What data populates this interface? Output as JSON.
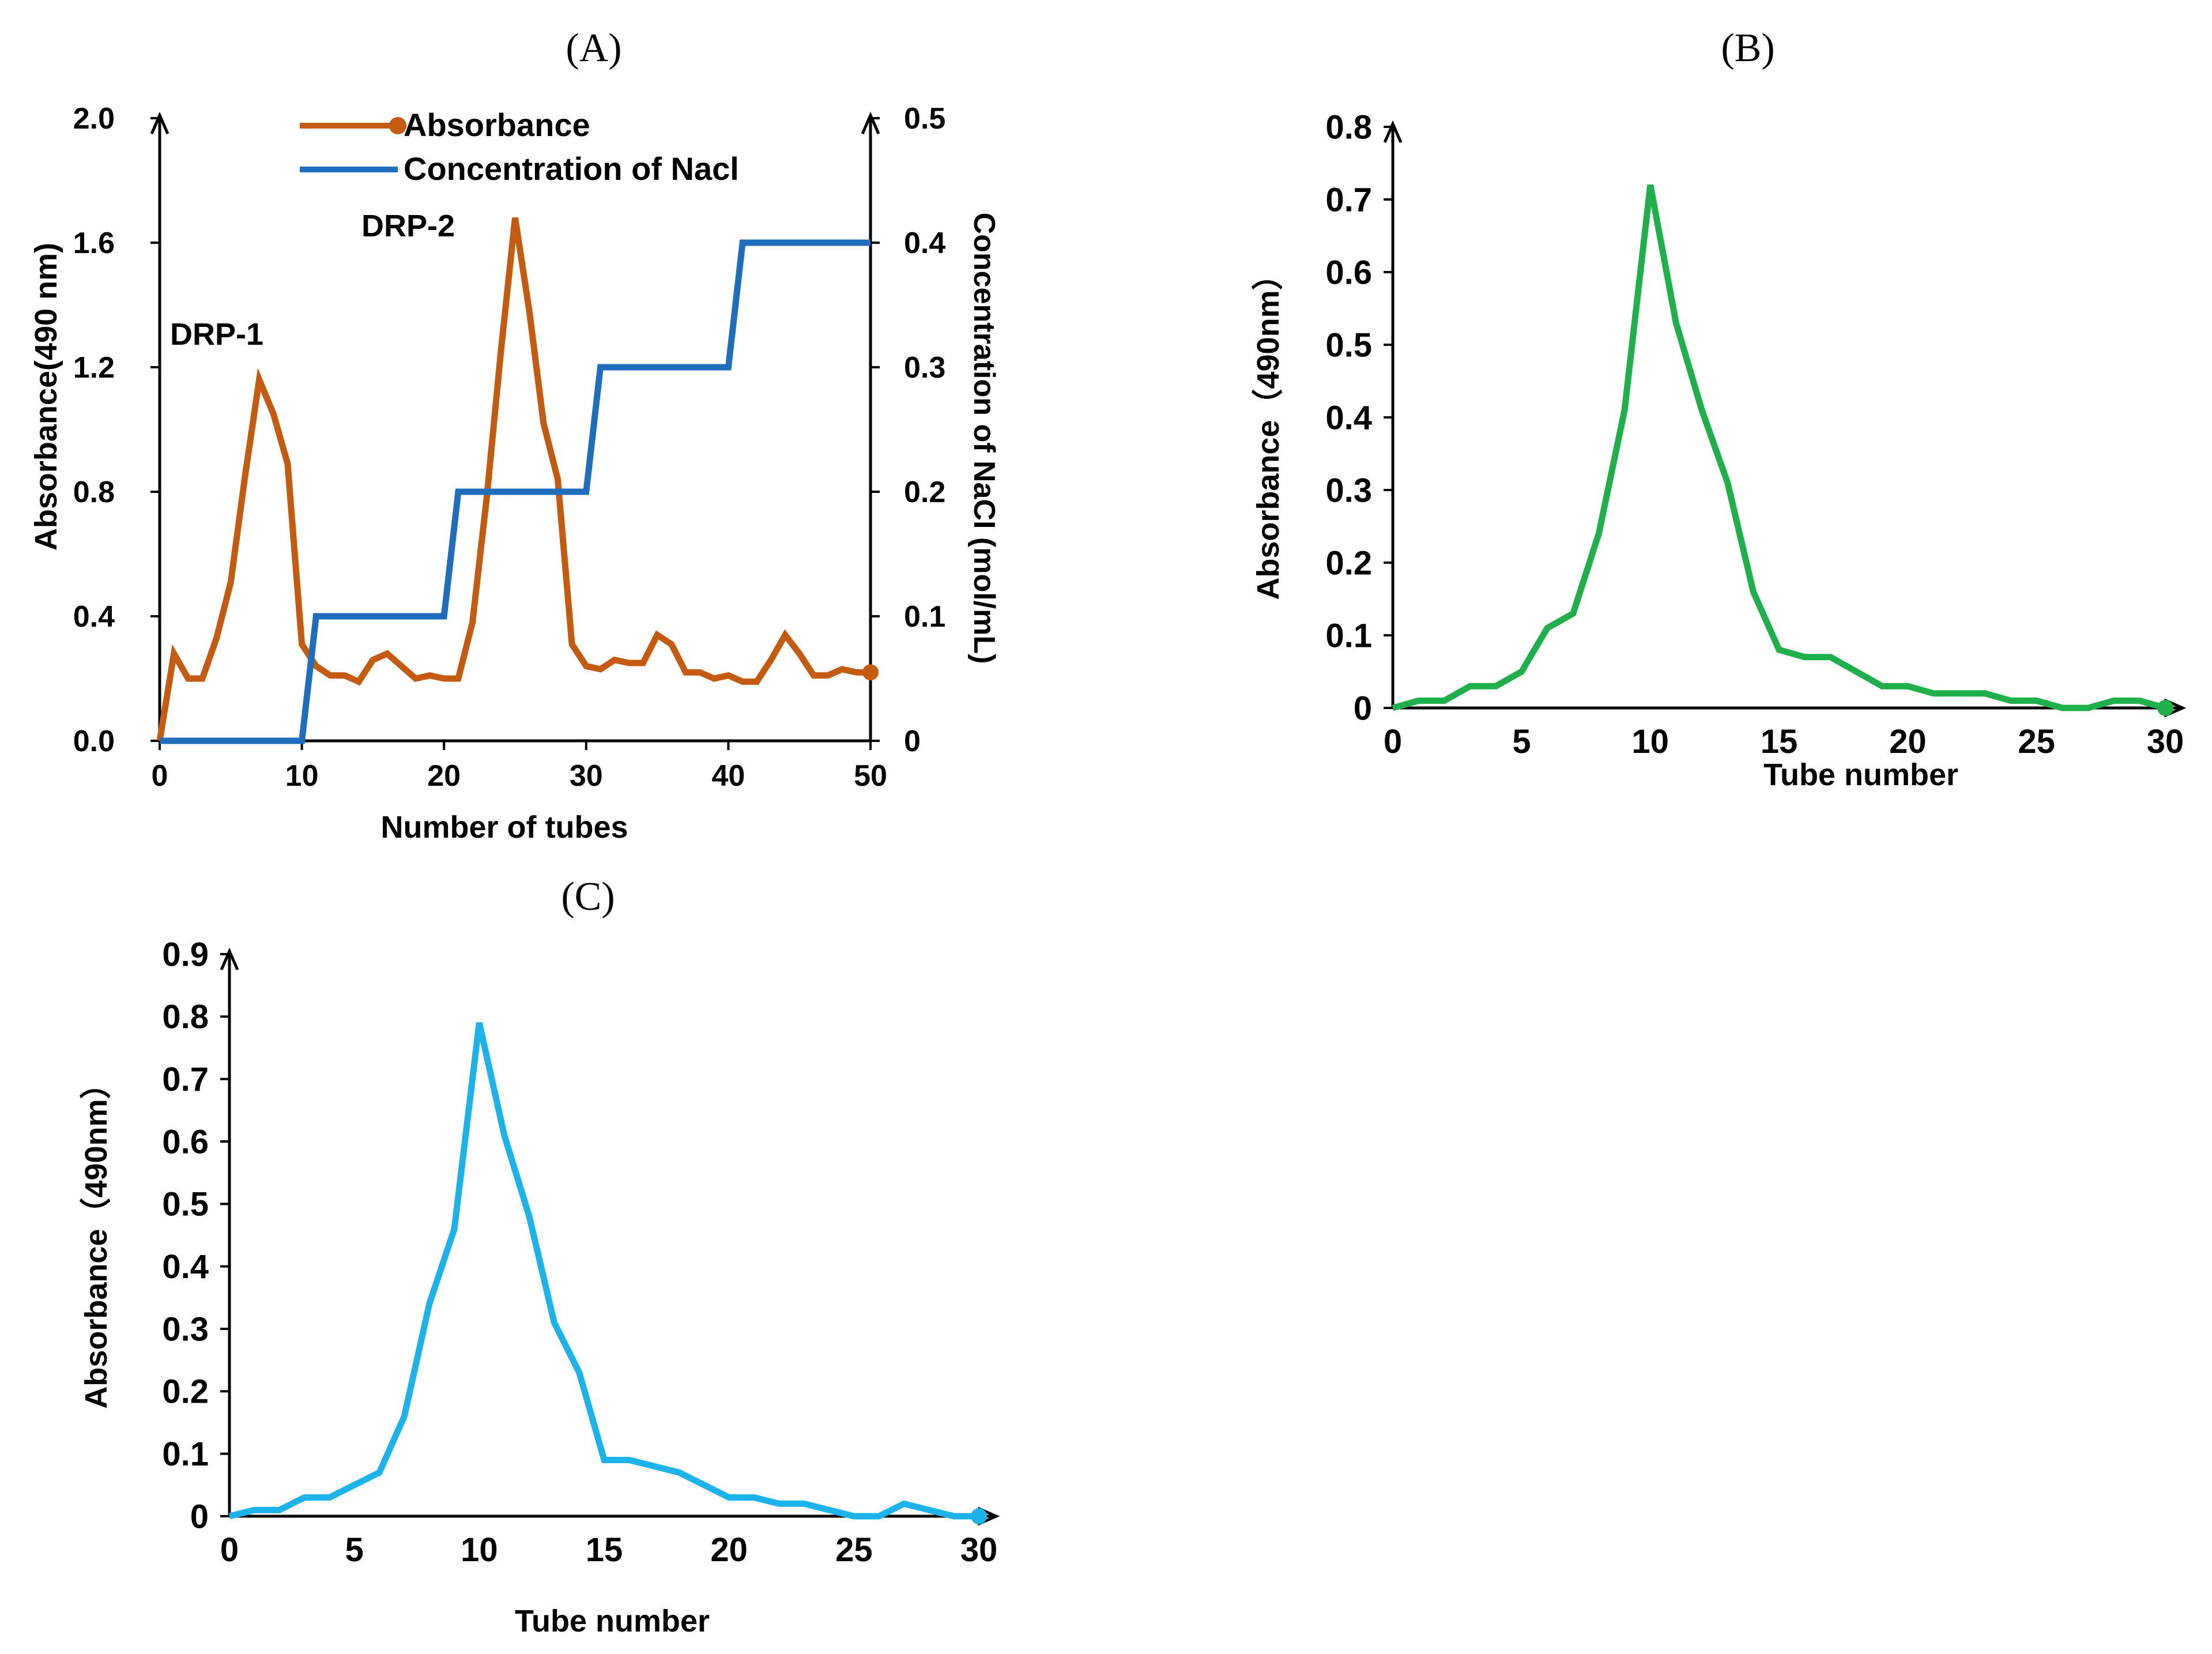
{
  "chart_data": [
    {
      "id": "A",
      "type": "line",
      "panel_label": "(A)",
      "xlabel": "Number of tubes",
      "ylabel_left": "Absorbance(490 nm)",
      "ylabel_right": "Concentration of NaCI (mol/mL)",
      "x_ticks": [
        "0",
        "10",
        "20",
        "30",
        "40",
        "50"
      ],
      "y_left_ticks": [
        "0.0",
        "0.4",
        "0.8",
        "1.2",
        "1.6",
        "2.0"
      ],
      "y_right_ticks": [
        "0",
        "0.1",
        "0.2",
        "0.3",
        "0.4",
        "0.5"
      ],
      "xlim": [
        0,
        50
      ],
      "ylim_left": [
        0,
        2.0
      ],
      "ylim_right": [
        0,
        0.5
      ],
      "legend_position": "top-center",
      "grid": false,
      "annotations": [
        {
          "text": "DRP-1",
          "x": 7,
          "y": 1.3
        },
        {
          "text": "DRP-2",
          "x": 23,
          "y": 1.7
        }
      ],
      "series": [
        {
          "name": "Absorbance",
          "axis": "left",
          "color": "#C55A11",
          "x": [
            0,
            1,
            2,
            3,
            4,
            5,
            6,
            7,
            8,
            9,
            10,
            11,
            12,
            13,
            14,
            15,
            16,
            17,
            18,
            19,
            20,
            21,
            22,
            23,
            24,
            25,
            26,
            27,
            28,
            29,
            30,
            31,
            32,
            33,
            34,
            35,
            36,
            37,
            38,
            39,
            40,
            41,
            42,
            43,
            44,
            45,
            46,
            47,
            48,
            49,
            50
          ],
          "values": [
            0.0,
            0.28,
            0.2,
            0.2,
            0.33,
            0.51,
            0.85,
            1.16,
            1.05,
            0.89,
            0.31,
            0.24,
            0.21,
            0.21,
            0.19,
            0.26,
            0.28,
            0.24,
            0.2,
            0.21,
            0.2,
            0.2,
            0.38,
            0.78,
            1.25,
            1.68,
            1.38,
            1.02,
            0.84,
            0.31,
            0.24,
            0.23,
            0.26,
            0.25,
            0.25,
            0.34,
            0.31,
            0.22,
            0.22,
            0.2,
            0.21,
            0.19,
            0.19,
            0.26,
            0.34,
            0.28,
            0.21,
            0.21,
            0.23,
            0.22,
            0.22
          ]
        },
        {
          "name": "Concentration of Nacl",
          "axis": "right",
          "color": "#1F6EBD",
          "x": [
            0,
            10,
            11,
            20,
            21,
            30,
            31,
            40,
            41,
            50
          ],
          "values": [
            0,
            0,
            0.1,
            0.1,
            0.2,
            0.2,
            0.3,
            0.3,
            0.4,
            0.4
          ]
        }
      ]
    },
    {
      "id": "B",
      "type": "line",
      "panel_label": "(B)",
      "xlabel": "Tube number",
      "ylabel": "Absorbance（490nm）",
      "x_ticks": [
        "0",
        "5",
        "10",
        "15",
        "20",
        "25",
        "30"
      ],
      "y_ticks": [
        "0",
        "0.1",
        "0.2",
        "0.3",
        "0.4",
        "0.5",
        "0.6",
        "0.7",
        "0.8"
      ],
      "xlim": [
        0,
        30
      ],
      "ylim": [
        0,
        0.8
      ],
      "grid": false,
      "series": [
        {
          "color": "#1FAF4B",
          "x": [
            0,
            1,
            2,
            3,
            4,
            5,
            6,
            7,
            8,
            9,
            10,
            11,
            12,
            13,
            14,
            15,
            16,
            17,
            18,
            19,
            20,
            21,
            22,
            23,
            24,
            25,
            26,
            27,
            28,
            29,
            30
          ],
          "values": [
            0.0,
            0.01,
            0.01,
            0.03,
            0.03,
            0.05,
            0.11,
            0.13,
            0.24,
            0.41,
            0.72,
            0.53,
            0.41,
            0.31,
            0.16,
            0.08,
            0.07,
            0.07,
            0.05,
            0.03,
            0.03,
            0.02,
            0.02,
            0.02,
            0.01,
            0.01,
            0.0,
            0.0,
            0.01,
            0.01,
            0.0
          ]
        }
      ]
    },
    {
      "id": "C",
      "type": "line",
      "panel_label": "(C)",
      "xlabel": "Tube number",
      "ylabel": "Absorbance（490nm）",
      "x_ticks": [
        "0",
        "5",
        "10",
        "15",
        "20",
        "25",
        "30"
      ],
      "y_ticks": [
        "0",
        "0.1",
        "0.2",
        "0.3",
        "0.4",
        "0.5",
        "0.6",
        "0.7",
        "0.8",
        "0.9"
      ],
      "xlim": [
        0,
        30
      ],
      "ylim": [
        0,
        0.9
      ],
      "grid": false,
      "series": [
        {
          "color": "#1CB3EA",
          "x": [
            0,
            1,
            2,
            3,
            4,
            5,
            6,
            7,
            8,
            9,
            10,
            11,
            12,
            13,
            14,
            15,
            16,
            17,
            18,
            19,
            20,
            21,
            22,
            23,
            24,
            25,
            26,
            27,
            28,
            29,
            30
          ],
          "values": [
            0.0,
            0.01,
            0.01,
            0.03,
            0.03,
            0.05,
            0.07,
            0.16,
            0.34,
            0.46,
            0.79,
            0.61,
            0.48,
            0.31,
            0.23,
            0.09,
            0.09,
            0.08,
            0.07,
            0.05,
            0.03,
            0.03,
            0.02,
            0.02,
            0.01,
            0.0,
            0.0,
            0.02,
            0.01,
            0.0,
            0.0
          ]
        }
      ]
    }
  ]
}
